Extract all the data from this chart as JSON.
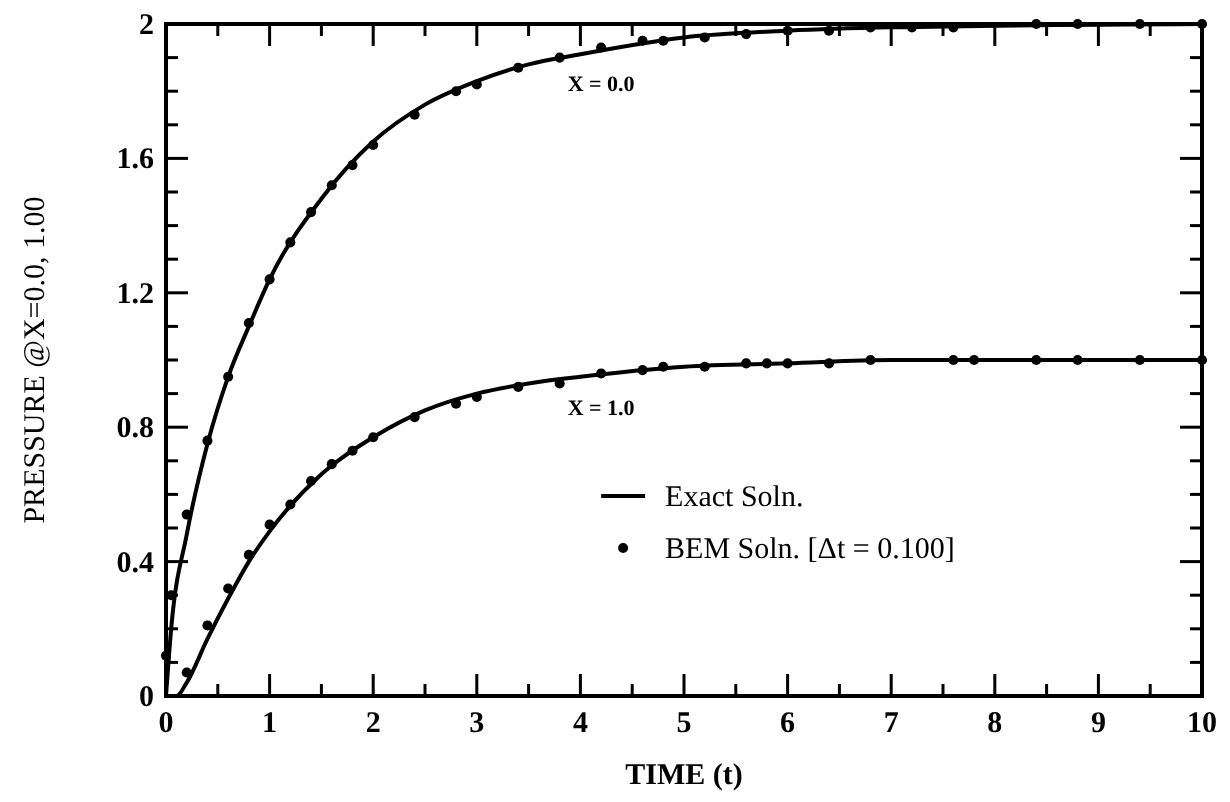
{
  "chart_data": {
    "type": "line",
    "xlabel": "TIME (t)",
    "ylabel": "PRESSURE @X=0.0, 1.00",
    "xlim": [
      0,
      10
    ],
    "ylim": [
      0,
      2
    ],
    "xticks": [
      0,
      {
        "value": 0.5,
        "label": null
      },
      1,
      {
        "value": 1.5,
        "label": null
      },
      2,
      {
        "value": 2.5,
        "label": null
      },
      3,
      {
        "value": 3.5,
        "label": null
      },
      4,
      {
        "value": 4.5,
        "label": null
      },
      5,
      {
        "value": 5.5,
        "label": null
      },
      6,
      {
        "value": 6.5,
        "label": null
      },
      7,
      {
        "value": 7.5,
        "label": null
      },
      8,
      {
        "value": 8.5,
        "label": null
      },
      9,
      {
        "value": 9.5,
        "label": null
      },
      10
    ],
    "yticks": [
      0,
      {
        "value": 0.1,
        "label": null
      },
      {
        "value": 0.2,
        "label": null
      },
      {
        "value": 0.3,
        "label": null
      },
      0.4,
      {
        "value": 0.5,
        "label": null
      },
      {
        "value": 0.6,
        "label": null
      },
      {
        "value": 0.7,
        "label": null
      },
      0.8,
      {
        "value": 0.9,
        "label": null
      },
      {
        "value": 1.0,
        "label": null
      },
      {
        "value": 1.1,
        "label": null
      },
      1.2,
      {
        "value": 1.3,
        "label": null
      },
      {
        "value": 1.4,
        "label": null
      },
      {
        "value": 1.5,
        "label": null
      },
      1.6,
      {
        "value": 1.7,
        "label": null
      },
      {
        "value": 1.8,
        "label": null
      },
      {
        "value": 1.9,
        "label": null
      },
      2
    ],
    "grid": false,
    "legend": "bottom right",
    "annotations": [
      "X = 0.0",
      "X = 1.0"
    ],
    "series": [
      {
        "name": "Exact Soln.",
        "color": "#000000",
        "marker": "none",
        "line_style": "solid",
        "x": [
          0,
          0.05,
          0.2,
          0.4,
          0.6,
          0.8,
          1,
          1.5,
          2,
          2.5,
          3,
          3.5,
          4,
          5,
          6,
          7,
          10
        ],
        "values": [
          0,
          0.2,
          0.48,
          0.75,
          0.95,
          1.1,
          1.24,
          1.48,
          1.65,
          1.76,
          1.83,
          1.88,
          1.91,
          1.96,
          1.98,
          1.99,
          2.0
        ]
      },
      {
        "color": "#000000",
        "marker": "none",
        "line_style": "solid",
        "x": [
          0,
          0.1,
          0.2,
          0.4,
          0.6,
          0.8,
          1,
          1.5,
          2,
          2.5,
          3,
          3.5,
          4,
          5,
          6,
          7,
          10
        ],
        "values": [
          0,
          0,
          0.04,
          0.17,
          0.29,
          0.4,
          0.49,
          0.66,
          0.77,
          0.85,
          0.9,
          0.93,
          0.95,
          0.98,
          0.99,
          1.0,
          1.0
        ]
      },
      {
        "name": "BEM  Soln. [Δt = 0.100]",
        "type": "scatter",
        "color": "#000000",
        "marker": "circle",
        "x": [
          0,
          0.05,
          0.2,
          0.4,
          0.6,
          0.8,
          1.0,
          1.2,
          1.4,
          1.6,
          1.8,
          2.0,
          2.4,
          2.8,
          3.0,
          3.4,
          3.8,
          4.2,
          4.6,
          4.8,
          5.2,
          5.6,
          6.0,
          6.4,
          6.8,
          7.2,
          7.6,
          8.4,
          8.8,
          9.4,
          10
        ],
        "values": [
          0.12,
          0.3,
          0.54,
          0.76,
          0.95,
          1.11,
          1.24,
          1.35,
          1.44,
          1.52,
          1.58,
          1.64,
          1.73,
          1.8,
          1.82,
          1.87,
          1.9,
          1.93,
          1.95,
          1.95,
          1.96,
          1.97,
          1.98,
          1.98,
          1.99,
          1.99,
          1.99,
          2.0,
          2.0,
          2.0,
          2.0
        ]
      },
      {
        "type": "scatter",
        "color": "#000000",
        "marker": "circle",
        "x": [
          0.2,
          0.4,
          0.6,
          0.8,
          1.0,
          1.2,
          1.4,
          1.6,
          1.8,
          2.0,
          2.4,
          2.8,
          3.0,
          3.4,
          3.8,
          4.2,
          4.6,
          4.8,
          5.2,
          5.6,
          5.8,
          6.0,
          6.4,
          6.8,
          7.6,
          7.8,
          8.4,
          8.8,
          9.4,
          10
        ],
        "values": [
          0.07,
          0.21,
          0.32,
          0.42,
          0.51,
          0.57,
          0.64,
          0.69,
          0.73,
          0.77,
          0.83,
          0.87,
          0.89,
          0.92,
          0.93,
          0.96,
          0.97,
          0.98,
          0.98,
          0.99,
          0.99,
          0.99,
          0.99,
          1.0,
          1.0,
          1.0,
          1.0,
          1.0,
          1.0,
          1.0
        ]
      }
    ]
  }
}
